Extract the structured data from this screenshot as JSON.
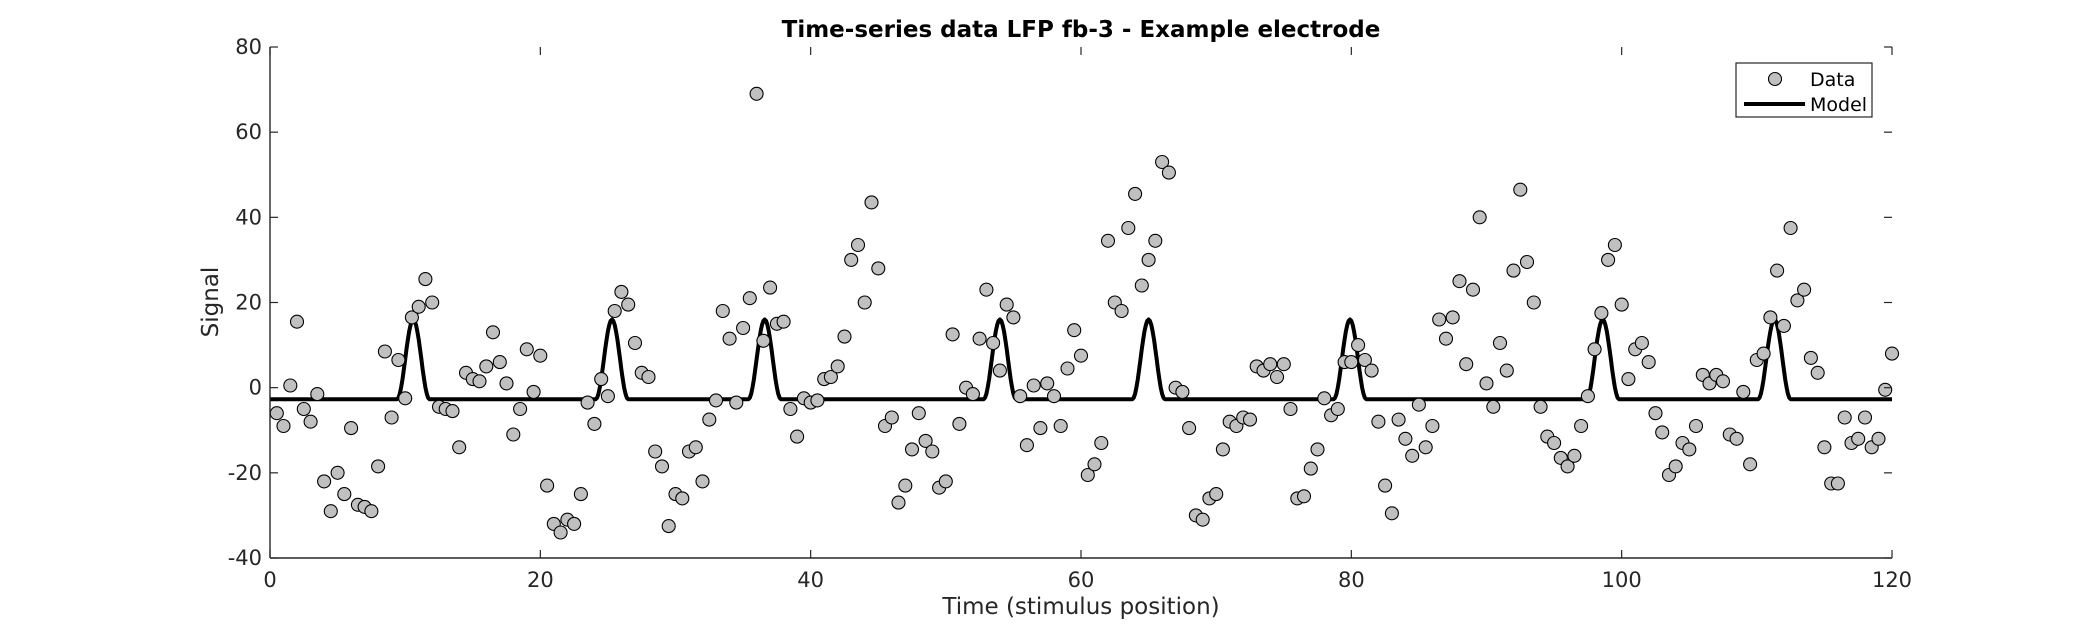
{
  "chart_data": {
    "type": "scatter",
    "title": "Time-series data LFP fb-3 - Example electrode",
    "xlabel": "Time (stimulus position)",
    "ylabel": "Signal",
    "xlim": [
      0,
      120
    ],
    "ylim": [
      -40,
      80
    ],
    "xticks": [
      0,
      20,
      40,
      60,
      80,
      100,
      120
    ],
    "yticks": [
      -40,
      -20,
      0,
      20,
      40,
      60,
      80
    ],
    "grid": false,
    "legend_position": "top-right",
    "series": [
      {
        "name": "Data",
        "kind": "markers",
        "color": "#c0c0c0",
        "edge_color": "#000000",
        "points": [
          [
            0.5,
            -6
          ],
          [
            1,
            -9
          ],
          [
            1.5,
            0.5
          ],
          [
            2,
            15.5
          ],
          [
            2.5,
            -5
          ],
          [
            3,
            -8
          ],
          [
            3.5,
            -1.5
          ],
          [
            4,
            -22
          ],
          [
            4.5,
            -29
          ],
          [
            5,
            -20
          ],
          [
            5.5,
            -25
          ],
          [
            6,
            -9.5
          ],
          [
            6.5,
            -27.5
          ],
          [
            7,
            -28
          ],
          [
            7.5,
            -29
          ],
          [
            8,
            -18.5
          ],
          [
            8.5,
            8.5
          ],
          [
            9,
            -7
          ],
          [
            9.5,
            6.5
          ],
          [
            10,
            -2.5
          ],
          [
            10.5,
            16.5
          ],
          [
            11,
            19
          ],
          [
            11.5,
            25.5
          ],
          [
            12,
            20
          ],
          [
            12.5,
            -4.5
          ],
          [
            13,
            -5
          ],
          [
            13.5,
            -5.5
          ],
          [
            14,
            -14
          ],
          [
            14.5,
            3.5
          ],
          [
            15,
            2
          ],
          [
            15.5,
            1.5
          ],
          [
            16,
            5
          ],
          [
            16.5,
            13
          ],
          [
            17,
            6
          ],
          [
            17.5,
            1
          ],
          [
            18,
            -11
          ],
          [
            18.5,
            -5
          ],
          [
            19,
            9
          ],
          [
            19.5,
            -1
          ],
          [
            20,
            7.5
          ],
          [
            20.5,
            -23
          ],
          [
            21,
            -32
          ],
          [
            21.5,
            -34
          ],
          [
            22,
            -31
          ],
          [
            22.5,
            -32
          ],
          [
            23,
            -25
          ],
          [
            23.5,
            -3.5
          ],
          [
            24,
            -8.5
          ],
          [
            24.5,
            2
          ],
          [
            25,
            -2
          ],
          [
            25.5,
            18
          ],
          [
            26,
            22.5
          ],
          [
            26.5,
            19.5
          ],
          [
            27,
            10.5
          ],
          [
            27.5,
            3.5
          ],
          [
            28,
            2.5
          ],
          [
            28.5,
            -15
          ],
          [
            29,
            -18.5
          ],
          [
            29.5,
            -32.5
          ],
          [
            30,
            -25
          ],
          [
            30.5,
            -26
          ],
          [
            31,
            -15
          ],
          [
            31.5,
            -14
          ],
          [
            32,
            -22
          ],
          [
            32.5,
            -7.5
          ],
          [
            33,
            -3
          ],
          [
            33.5,
            18
          ],
          [
            34,
            11.5
          ],
          [
            34.5,
            -3.5
          ],
          [
            35,
            14
          ],
          [
            35.5,
            21
          ],
          [
            36,
            69
          ],
          [
            36.5,
            11
          ],
          [
            37,
            23.5
          ],
          [
            37.5,
            15
          ],
          [
            38,
            15.5
          ],
          [
            38.5,
            -5
          ],
          [
            39,
            -11.5
          ],
          [
            39.5,
            -2.5
          ],
          [
            40,
            -3.5
          ],
          [
            40.5,
            -3
          ],
          [
            41,
            2
          ],
          [
            41.5,
            2.5
          ],
          [
            42,
            5
          ],
          [
            42.5,
            12
          ],
          [
            43,
            30
          ],
          [
            43.5,
            33.5
          ],
          [
            44,
            20
          ],
          [
            44.5,
            43.5
          ],
          [
            45,
            28
          ],
          [
            45.5,
            -9
          ],
          [
            46,
            -7
          ],
          [
            46.5,
            -27
          ],
          [
            47,
            -23
          ],
          [
            47.5,
            -14.5
          ],
          [
            48,
            -6
          ],
          [
            48.5,
            -12.5
          ],
          [
            49,
            -15
          ],
          [
            49.5,
            -23.5
          ],
          [
            50,
            -22
          ],
          [
            50.5,
            12.5
          ],
          [
            51,
            -8.5
          ],
          [
            51.5,
            0
          ],
          [
            52,
            -1.5
          ],
          [
            52.5,
            11.5
          ],
          [
            53,
            23
          ],
          [
            53.5,
            10.5
          ],
          [
            54,
            4
          ],
          [
            54.5,
            19.5
          ],
          [
            55,
            16.5
          ],
          [
            55.5,
            -2
          ],
          [
            56,
            -13.5
          ],
          [
            56.5,
            0.5
          ],
          [
            57,
            -9.5
          ],
          [
            57.5,
            1
          ],
          [
            58,
            -2
          ],
          [
            58.5,
            -9
          ],
          [
            59,
            4.5
          ],
          [
            59.5,
            13.5
          ],
          [
            60,
            7.5
          ],
          [
            60.5,
            -20.5
          ],
          [
            61,
            -18
          ],
          [
            61.5,
            -13
          ],
          [
            62,
            34.5
          ],
          [
            62.5,
            20
          ],
          [
            63,
            18
          ],
          [
            63.5,
            37.5
          ],
          [
            64,
            45.5
          ],
          [
            64.5,
            24
          ],
          [
            65,
            30
          ],
          [
            65.5,
            34.5
          ],
          [
            66,
            53
          ],
          [
            66.5,
            50.5
          ],
          [
            67,
            0
          ],
          [
            67.5,
            -1
          ],
          [
            68,
            -9.5
          ],
          [
            68.5,
            -30
          ],
          [
            69,
            -31
          ],
          [
            69.5,
            -26
          ],
          [
            70,
            -25
          ],
          [
            70.5,
            -14.5
          ],
          [
            71,
            -8
          ],
          [
            71.5,
            -9
          ],
          [
            72,
            -7
          ],
          [
            72.5,
            -7.5
          ],
          [
            73,
            5
          ],
          [
            73.5,
            4
          ],
          [
            74,
            5.5
          ],
          [
            74.5,
            2.5
          ],
          [
            75,
            5.5
          ],
          [
            75.5,
            -5
          ],
          [
            76,
            -26
          ],
          [
            76.5,
            -25.5
          ],
          [
            77,
            -19
          ],
          [
            77.5,
            -14.5
          ],
          [
            78,
            -2.5
          ],
          [
            78.5,
            -6.5
          ],
          [
            79,
            -5
          ],
          [
            79.5,
            6
          ],
          [
            80,
            6
          ],
          [
            80.5,
            10
          ],
          [
            81,
            6.5
          ],
          [
            81.5,
            4
          ],
          [
            82,
            -8
          ],
          [
            82.5,
            -23
          ],
          [
            83,
            -29.5
          ],
          [
            83.5,
            -7.5
          ],
          [
            84,
            -12
          ],
          [
            84.5,
            -16
          ],
          [
            85,
            -4
          ],
          [
            85.5,
            -14
          ],
          [
            86,
            -9
          ],
          [
            86.5,
            16
          ],
          [
            87,
            11.5
          ],
          [
            87.5,
            16.5
          ],
          [
            88,
            25
          ],
          [
            88.5,
            5.5
          ],
          [
            89,
            23
          ],
          [
            89.5,
            40
          ],
          [
            90,
            1
          ],
          [
            90.5,
            -4.5
          ],
          [
            91,
            10.5
          ],
          [
            91.5,
            4
          ],
          [
            92,
            27.5
          ],
          [
            92.5,
            46.5
          ],
          [
            93,
            29.5
          ],
          [
            93.5,
            20
          ],
          [
            94,
            -4.5
          ],
          [
            94.5,
            -11.5
          ],
          [
            95,
            -13
          ],
          [
            95.5,
            -16.5
          ],
          [
            96,
            -18.5
          ],
          [
            96.5,
            -16
          ],
          [
            97,
            -9
          ],
          [
            97.5,
            -2
          ],
          [
            98,
            9
          ],
          [
            98.5,
            17.5
          ],
          [
            99,
            30
          ],
          [
            99.5,
            33.5
          ],
          [
            100,
            19.5
          ],
          [
            100.5,
            2
          ],
          [
            101,
            9
          ],
          [
            101.5,
            10.5
          ],
          [
            102,
            6
          ],
          [
            102.5,
            -6
          ],
          [
            103,
            -10.5
          ],
          [
            103.5,
            -20.5
          ],
          [
            104,
            -18.5
          ],
          [
            104.5,
            -13
          ],
          [
            105,
            -14.5
          ],
          [
            105.5,
            -9
          ],
          [
            106,
            3
          ],
          [
            106.5,
            1
          ],
          [
            107,
            3
          ],
          [
            107.5,
            1.5
          ],
          [
            108,
            -11
          ],
          [
            108.5,
            -12
          ],
          [
            109,
            -1
          ],
          [
            109.5,
            -18
          ],
          [
            110,
            6.5
          ],
          [
            110.5,
            8
          ],
          [
            111,
            16.5
          ],
          [
            111.5,
            27.5
          ],
          [
            112,
            14.5
          ],
          [
            112.5,
            37.5
          ],
          [
            113,
            20.5
          ],
          [
            113.5,
            23
          ],
          [
            114,
            7
          ],
          [
            114.5,
            3.5
          ],
          [
            115,
            -14
          ],
          [
            115.5,
            -22.5
          ],
          [
            116,
            -22.5
          ],
          [
            116.5,
            -7
          ],
          [
            117,
            -13
          ],
          [
            117.5,
            -12
          ],
          [
            118,
            -7
          ],
          [
            118.5,
            -14
          ],
          [
            119,
            -12
          ],
          [
            119.5,
            -0.5
          ],
          [
            120,
            8
          ]
        ]
      },
      {
        "name": "Model",
        "kind": "line",
        "color": "#000000",
        "baseline": -2.7,
        "peak": 16,
        "peak_half_width": 1.2,
        "peak_centers": [
          10.6,
          25.3,
          36.6,
          54.0,
          65.0,
          79.9,
          98.6,
          111.3
        ]
      }
    ]
  }
}
